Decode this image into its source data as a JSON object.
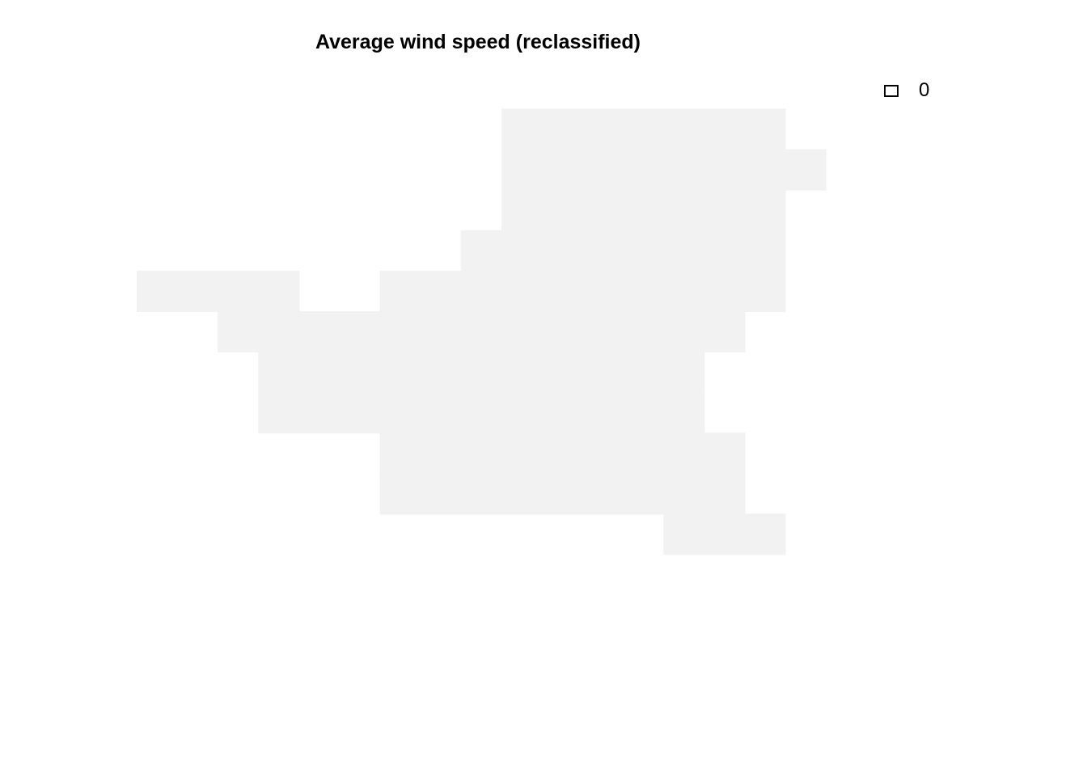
{
  "title": "Average wind speed (reclassified)",
  "legend": {
    "entries": [
      {
        "label": "0",
        "fill": "#ffffff",
        "border": "#000000"
      }
    ]
  },
  "raster": {
    "value": 0,
    "fill_color": "#f2f2f2",
    "cols": 17,
    "rows": 12,
    "grid": [
      "....#######......",
      "....########.....",
      "....#######......",
      "...########......",
      "####.########....",
      ".############....",
      "..###########....",
      "..###########....",
      "....#########....",
      "....#########....",
      "...........###...",
      "................."
    ]
  }
}
